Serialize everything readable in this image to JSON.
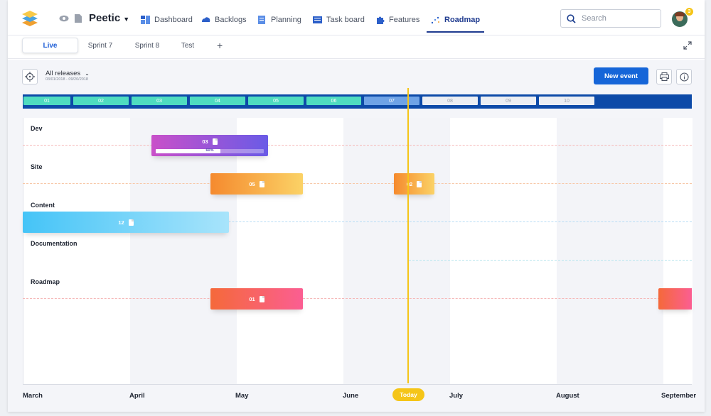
{
  "app": {
    "project": "Peetic"
  },
  "nav": [
    {
      "label": "Dashboard",
      "icon": "dashboard-icon"
    },
    {
      "label": "Backlogs",
      "icon": "backlogs-icon"
    },
    {
      "label": "Planning",
      "icon": "planning-icon"
    },
    {
      "label": "Task board",
      "icon": "task-board-icon"
    },
    {
      "label": "Features",
      "icon": "features-icon"
    },
    {
      "label": "Roadmap",
      "icon": "roadmap-icon",
      "active": true
    }
  ],
  "search": {
    "placeholder": "Search"
  },
  "user": {
    "notifications": "3"
  },
  "tabs": [
    {
      "label": "Live",
      "active": true
    },
    {
      "label": "Sprint 7"
    },
    {
      "label": "Sprint 8"
    },
    {
      "label": "Test"
    }
  ],
  "releases": {
    "title": "All releases",
    "dates": "03/01/2018 - 09/20/2018"
  },
  "actions": {
    "new_event": "New event"
  },
  "sprints": [
    "01",
    "02",
    "03",
    "04",
    "05",
    "06",
    "07",
    "08",
    "09",
    "10"
  ],
  "rows": [
    {
      "label": "Dev"
    },
    {
      "label": "Site"
    },
    {
      "label": "Content"
    },
    {
      "label": "Documentation"
    },
    {
      "label": "Roadmap"
    }
  ],
  "events": {
    "dev_03": {
      "label": "03",
      "progress_label": "60%",
      "progress": 0.6
    },
    "site_05": {
      "label": "05"
    },
    "site_02": {
      "label": "02"
    },
    "content_12": {
      "label": "12"
    },
    "roadmap_01": {
      "label": "01"
    }
  },
  "months": [
    "March",
    "April",
    "May",
    "June",
    "July",
    "August",
    "September"
  ],
  "today": "Today",
  "colors": {
    "accent": "#1565d8",
    "today": "#f5c518",
    "sprint_done": "#4fdcc0",
    "sprint_current": "#6fa3e6",
    "sprint_future": "#eceef3"
  }
}
